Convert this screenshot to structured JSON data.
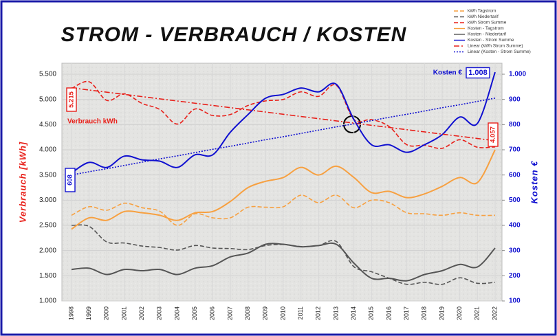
{
  "chart_data": {
    "type": "line",
    "title": "STROM - VERBRAUCH / KOSTEN",
    "ylabel": "Verbrauch  [kWh]",
    "y2label": "Kosten €",
    "categories": [
      "1998",
      "1999",
      "2000",
      "2001",
      "2002",
      "2003",
      "2004",
      "2005",
      "2006",
      "2007",
      "2008",
      "2009",
      "2010",
      "2011",
      "2012",
      "2013",
      "2014",
      "2015",
      "2016",
      "2017",
      "2018",
      "2019",
      "2020",
      "2021",
      "2022"
    ],
    "ylim": [
      1000,
      5500
    ],
    "yticks": [
      {
        "value": 1000,
        "label": "1.000"
      },
      {
        "value": 1500,
        "label": "1.500"
      },
      {
        "value": 2000,
        "label": "2.000"
      },
      {
        "value": 2500,
        "label": "2.500"
      },
      {
        "value": 3000,
        "label": "3.000"
      },
      {
        "value": 3500,
        "label": "3.500"
      },
      {
        "value": 4000,
        "label": "4.000"
      },
      {
        "value": 4500,
        "label": "4.500"
      },
      {
        "value": 5000,
        "label": "5.000"
      },
      {
        "value": 5500,
        "label": "5.500"
      }
    ],
    "y2lim": [
      100,
      1000
    ],
    "y2ticks": [
      100,
      200,
      300,
      400,
      500,
      600,
      700,
      800,
      900,
      {
        "value": 1000,
        "label": "1.000"
      }
    ],
    "grid": true,
    "legend": "top-right",
    "series": [
      {
        "name": "kWh Tagstrom",
        "color": "#f7a040",
        "dash": "dashed",
        "values": [
          2700,
          2870,
          2800,
          2940,
          2850,
          2780,
          2500,
          2730,
          2650,
          2650,
          2860,
          2860,
          2870,
          3100,
          2950,
          3100,
          2850,
          3000,
          2950,
          2750,
          2730,
          2700,
          2750,
          2700,
          2700
        ]
      },
      {
        "name": "kWh Niedertarif",
        "color": "#555555",
        "dash": "dashed",
        "values": [
          2500,
          2480,
          2170,
          2150,
          2090,
          2060,
          2010,
          2100,
          2050,
          2040,
          2020,
          2100,
          2120,
          2080,
          2100,
          2180,
          1680,
          1580,
          1450,
          1330,
          1370,
          1330,
          1460,
          1350,
          1370
        ]
      },
      {
        "name": "kWh Strom Summe",
        "color": "#e8201a",
        "dash": "dashed",
        "values": [
          5215,
          5350,
          4980,
          5110,
          4920,
          4800,
          4510,
          4810,
          4680,
          4700,
          4880,
          4970,
          5000,
          5150,
          5060,
          5280,
          4600,
          4600,
          4460,
          4100,
          4090,
          4030,
          4200,
          4050,
          4057
        ]
      },
      {
        "name": "Kosten - Tagstrom",
        "color": "#f7a040",
        "dash": "solid",
        "axis": "y2",
        "values": [
          385,
          430,
          420,
          455,
          450,
          440,
          420,
          450,
          455,
          495,
          550,
          575,
          590,
          630,
          600,
          635,
          590,
          530,
          535,
          510,
          525,
          555,
          590,
          570,
          700
        ]
      },
      {
        "name": "Kosten - Niedertarif",
        "color": "#555555",
        "dash": "solid",
        "axis": "y2",
        "values": [
          225,
          230,
          205,
          225,
          220,
          225,
          205,
          230,
          240,
          275,
          290,
          325,
          325,
          315,
          320,
          325,
          250,
          190,
          190,
          180,
          205,
          220,
          245,
          235,
          310
        ]
      },
      {
        "name": "Kosten - Strom Summe",
        "color": "#1010d0",
        "dash": "solid",
        "axis": "y2",
        "values": [
          608,
          650,
          630,
          675,
          660,
          655,
          630,
          680,
          680,
          770,
          840,
          905,
          920,
          945,
          930,
          960,
          820,
          720,
          720,
          690,
          720,
          760,
          830,
          805,
          1008
        ]
      },
      {
        "name": "Linear (kWh Strom Summe)",
        "color": "#e8201a",
        "dash": "dashdot",
        "values": [
          5230,
          5186,
          5143,
          5099,
          5055,
          5011,
          4968,
          4924,
          4880,
          4836,
          4793,
          4749,
          4705,
          4661,
          4618,
          4574,
          4530,
          4486,
          4443,
          4399,
          4355,
          4311,
          4268,
          4224,
          4180
        ]
      },
      {
        "name": "Linear (Kosten - Strom Summe)",
        "color": "#1010d0",
        "dash": "dotted",
        "axis": "y2",
        "values": [
          600,
          613,
          625,
          638,
          651,
          664,
          676,
          689,
          702,
          714,
          727,
          740,
          752,
          765,
          778,
          791,
          803,
          816,
          829,
          841,
          854,
          867,
          879,
          892,
          905
        ]
      }
    ],
    "annotations": [
      "Kosten €",
      "1.008",
      "608",
      "5.215",
      "4.057",
      "Verbrauch kWh"
    ]
  }
}
